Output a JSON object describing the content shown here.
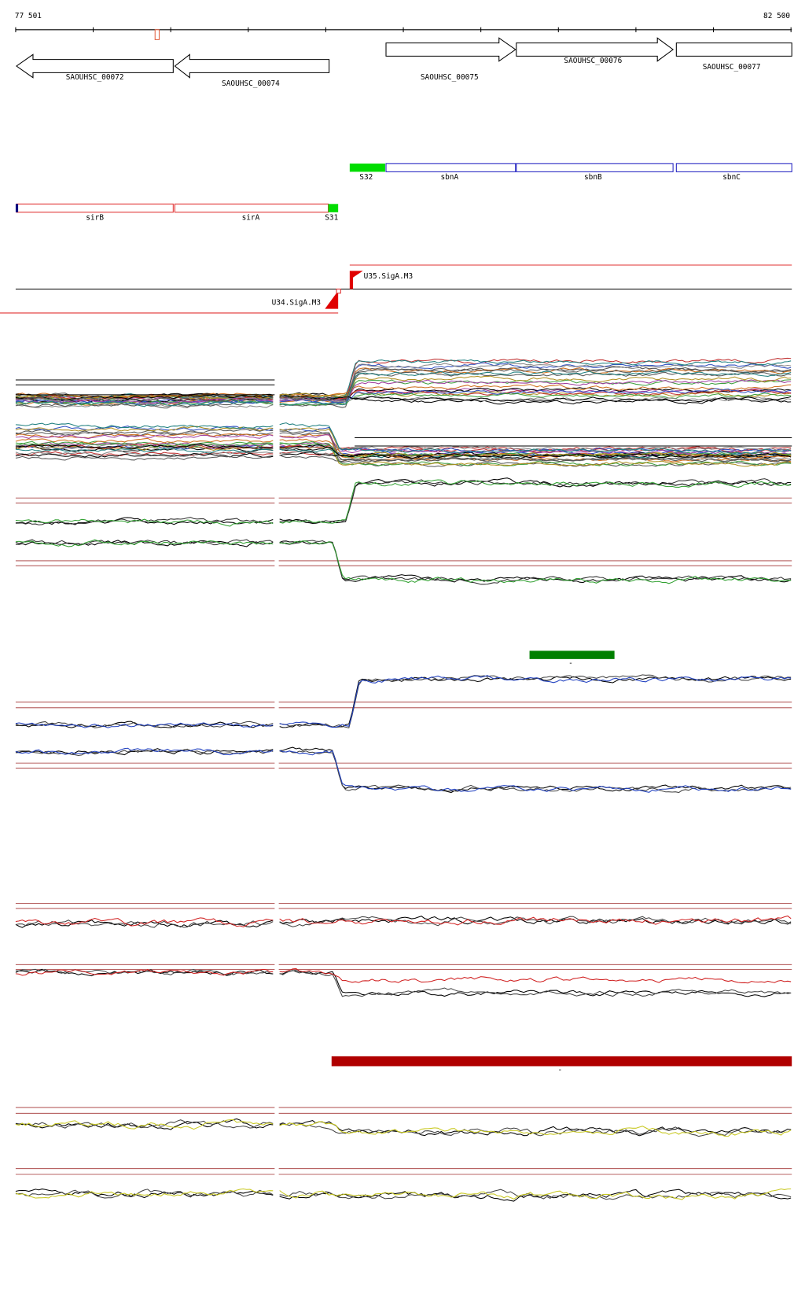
{
  "axis": {
    "start": "77 501",
    "end": "82 500"
  },
  "genes": [
    {
      "label": "SAOUHSC_00072"
    },
    {
      "label": "SAOUHSC_00074"
    },
    {
      "label": "SAOUHSC_00075"
    },
    {
      "label": "SAOUHSC_00076"
    },
    {
      "label": "SAOUHSC_00077"
    }
  ],
  "features": [
    {
      "label": "S32"
    },
    {
      "label": "sbnA"
    },
    {
      "label": "sbnB"
    },
    {
      "label": "sbnC"
    },
    {
      "label": "sirB"
    },
    {
      "label": "sirA"
    },
    {
      "label": "S31"
    }
  ],
  "promoters": [
    {
      "label": "U35.SigA.M3"
    },
    {
      "label": "U34.SigA.M3"
    }
  ],
  "bar_labels": [
    "-",
    "-"
  ]
}
